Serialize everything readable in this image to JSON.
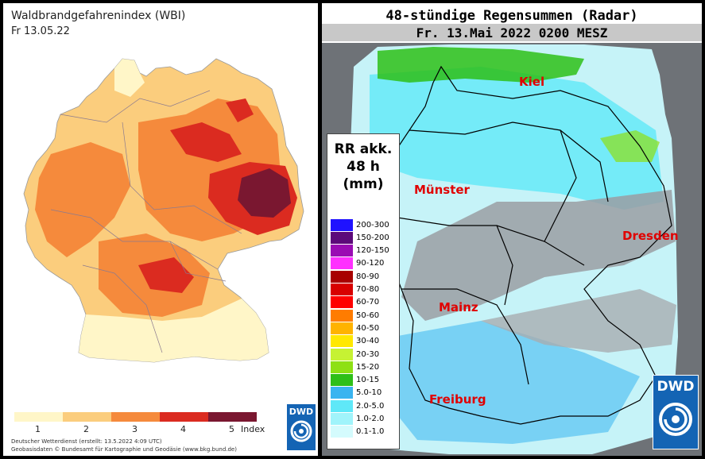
{
  "left_panel": {
    "title": "Waldbrandgefahrenindex (WBI)",
    "date": "Fr 13.05.22",
    "legend": {
      "colors": [
        "#fff6c8",
        "#fbcd7d",
        "#f58a3c",
        "#db2b20",
        "#7a1730"
      ],
      "labels": [
        "1",
        "2",
        "3",
        "4",
        "5",
        "Index"
      ]
    },
    "credit_line1": "Deutscher Wetterdienst (erstellt: 13.5.2022 4:09 UTC)",
    "credit_line2": "Geobasisdaten © Bundesamt für Kartographie und Geodäsie (www.bkg.bund.de)",
    "logo_text": "DWD"
  },
  "right_panel": {
    "title": "48-stündige Regensummen (Radar)",
    "subtitle": "Fr. 13.Mai 2022 0200 MESZ",
    "legend_title_lines": [
      "RR akk.",
      "48 h",
      "(mm)"
    ],
    "legend": [
      {
        "label": "200-300",
        "color": "#1f12ff"
      },
      {
        "label": "150-200",
        "color": "#5c0a7a"
      },
      {
        "label": "120-150",
        "color": "#9a0cb3"
      },
      {
        "label": "90-120",
        "color": "#ff30ff"
      },
      {
        "label": "80-90",
        "color": "#a80000"
      },
      {
        "label": "70-80",
        "color": "#d80000"
      },
      {
        "label": "60-70",
        "color": "#ff0000"
      },
      {
        "label": "50-60",
        "color": "#ff7c00"
      },
      {
        "label": "40-50",
        "color": "#ffb300"
      },
      {
        "label": "30-40",
        "color": "#ffe800"
      },
      {
        "label": "20-30",
        "color": "#c6f233"
      },
      {
        "label": "15-20",
        "color": "#8ee014"
      },
      {
        "label": "10-15",
        "color": "#2ebf18"
      },
      {
        "label": "5.0-10",
        "color": "#39b4f0"
      },
      {
        "label": "2.0-5.0",
        "color": "#5fe8f8"
      },
      {
        "label": "1.0-2.0",
        "color": "#a0f4fb"
      },
      {
        "label": "0.1-1.0",
        "color": "#d4fbfd"
      }
    ],
    "cities": [
      "Kiel",
      "Münster",
      "Dresden",
      "Mainz",
      "Freiburg"
    ],
    "logo_text": "DWD"
  }
}
